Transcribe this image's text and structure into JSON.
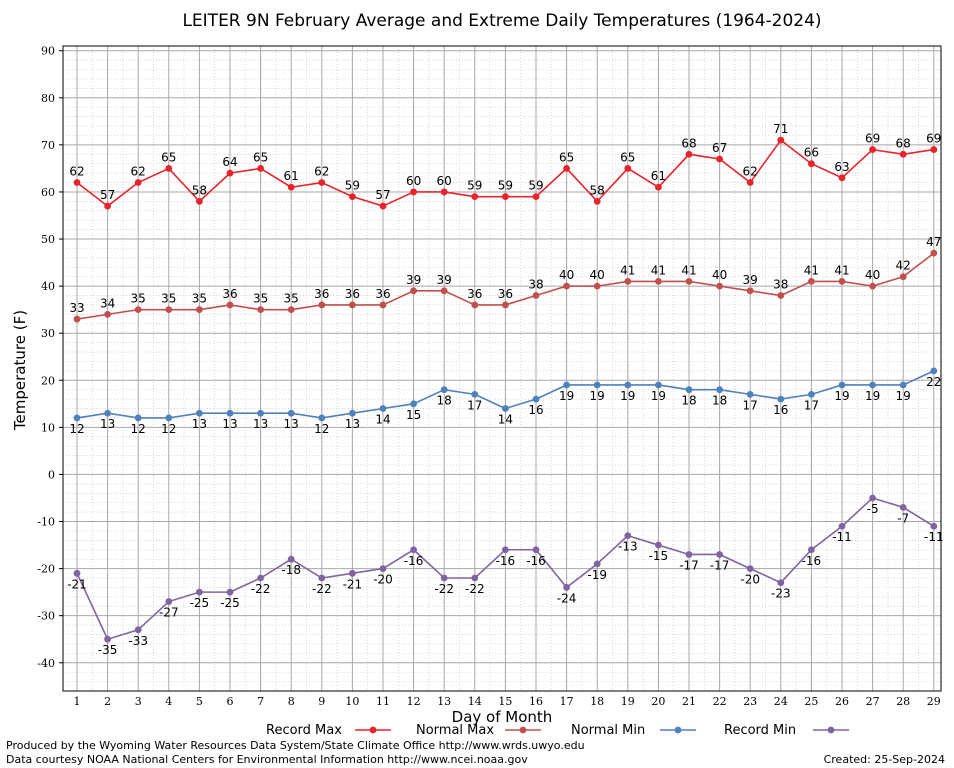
{
  "chart_data": {
    "type": "line",
    "title": "LEITER 9N February Average and Extreme Daily Temperatures (1964-2024)",
    "xlabel": "Day of Month",
    "ylabel": "Temperature (F)",
    "ylim": [
      -46,
      91
    ],
    "yticks": [
      90,
      80,
      70,
      60,
      50,
      40,
      30,
      20,
      10,
      0,
      -10,
      -20,
      -30,
      -40
    ],
    "categories": [
      "1",
      "2",
      "3",
      "4",
      "5",
      "6",
      "7",
      "8",
      "9",
      "10",
      "11",
      "12",
      "13",
      "14",
      "15",
      "16",
      "17",
      "18",
      "19",
      "20",
      "21",
      "22",
      "23",
      "24",
      "25",
      "26",
      "27",
      "28",
      "29"
    ],
    "grid": true,
    "legend_position": "bottom",
    "series": [
      {
        "name": "Record Max",
        "color": "#e8232b",
        "label_pos": "above",
        "values": [
          62,
          57,
          62,
          65,
          58,
          64,
          65,
          61,
          62,
          59,
          57,
          60,
          60,
          59,
          59,
          59,
          65,
          58,
          65,
          61,
          68,
          67,
          62,
          71,
          66,
          63,
          69,
          68,
          69
        ]
      },
      {
        "name": "Normal Max",
        "color": "#c0504d",
        "label_pos": "above",
        "values": [
          33,
          34,
          35,
          35,
          35,
          36,
          35,
          35,
          36,
          36,
          36,
          39,
          39,
          36,
          36,
          38,
          40,
          40,
          41,
          41,
          41,
          40,
          39,
          38,
          41,
          41,
          40,
          42,
          47
        ]
      },
      {
        "name": "Normal Min",
        "color": "#4f81bd",
        "label_pos": "below",
        "values": [
          12,
          13,
          12,
          12,
          13,
          13,
          13,
          13,
          12,
          13,
          14,
          15,
          18,
          17,
          14,
          16,
          19,
          19,
          19,
          19,
          18,
          18,
          17,
          16,
          17,
          19,
          19,
          19,
          22
        ]
      },
      {
        "name": "Record Min",
        "color": "#8064a2",
        "label_pos": "below",
        "values": [
          -21,
          -35,
          -33,
          -27,
          -25,
          -25,
          -22,
          -18,
          -22,
          -21,
          -20,
          -16,
          -22,
          -22,
          -16,
          -16,
          -24,
          -19,
          -13,
          -15,
          -17,
          -17,
          -20,
          -23,
          -16,
          -11,
          -5,
          -7,
          -11
        ]
      }
    ]
  },
  "footer": {
    "line1": "Produced by the Wyoming Water Resources Data System/State Climate Office http://www.wrds.uwyo.edu",
    "line2": "Data courtesy NOAA National Centers for Environmental Information http://www.ncei.noaa.gov",
    "created": "Created:  25-Sep-2024"
  }
}
